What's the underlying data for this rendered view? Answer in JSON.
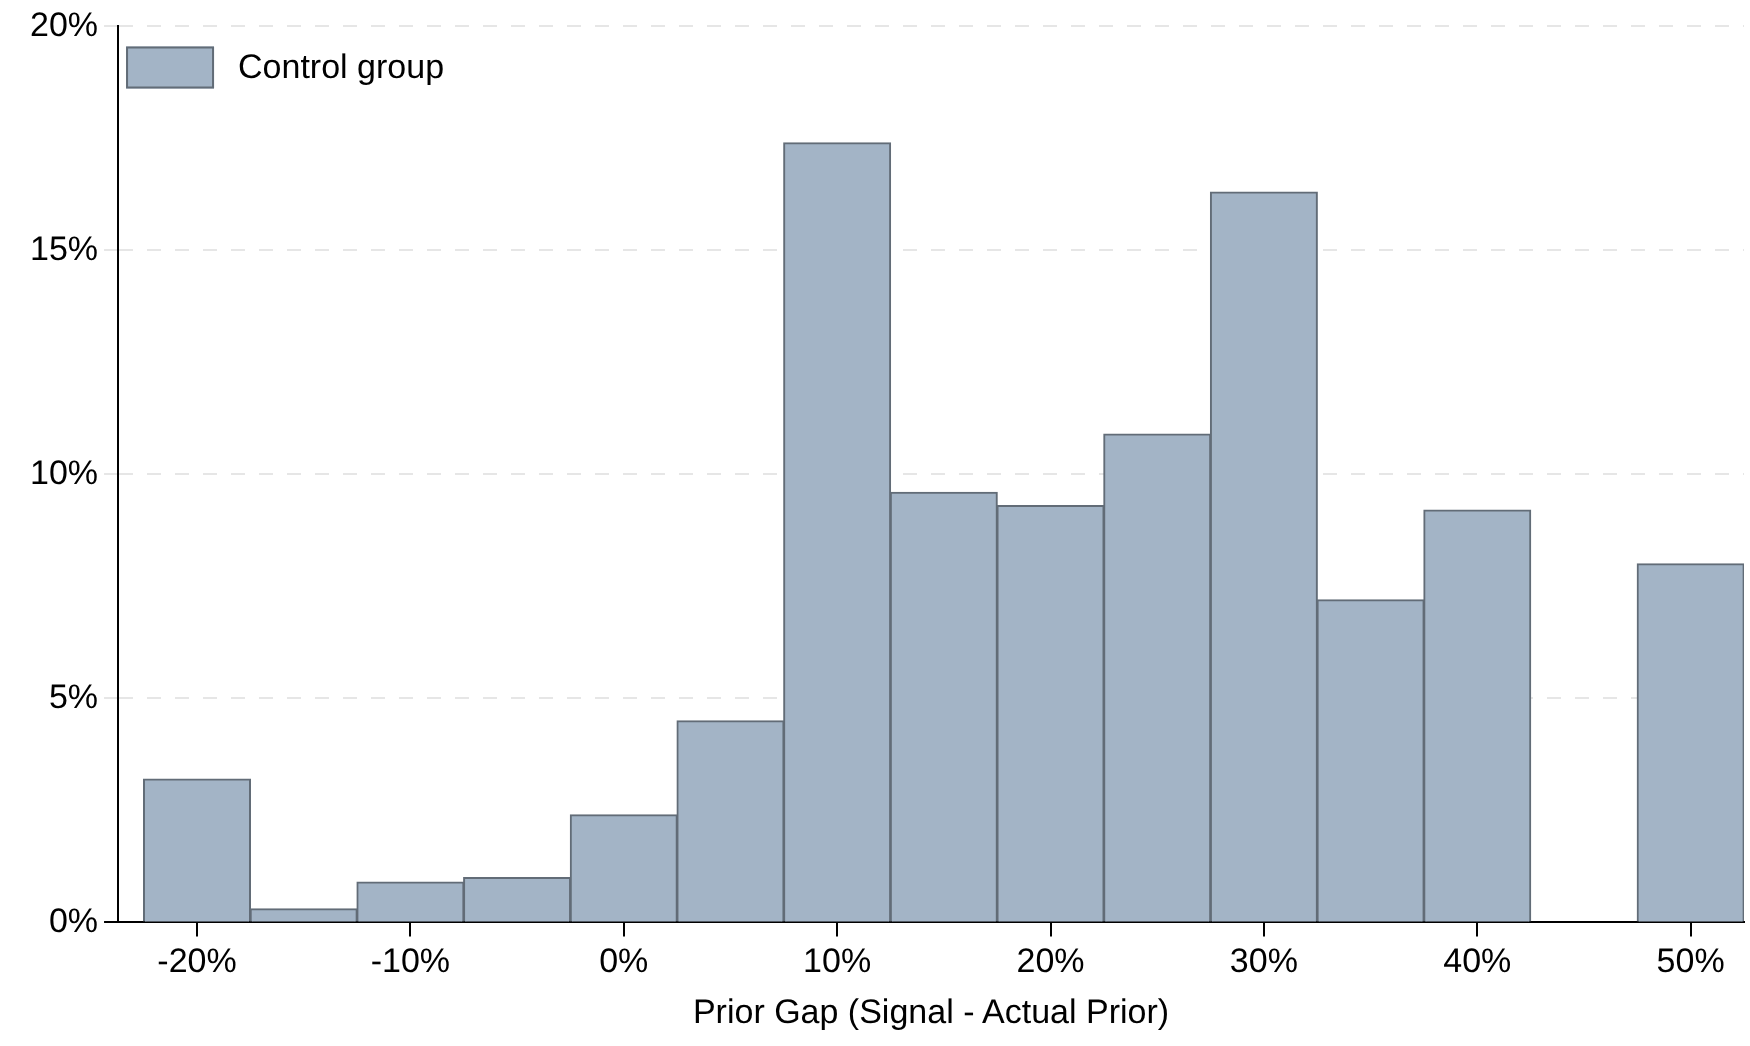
{
  "chart_data": {
    "type": "histogram",
    "xlabel": "Prior Gap (Signal - Actual Prior)",
    "bins": [
      -22.5,
      -17.5,
      -12.5,
      -7.5,
      -2.5,
      2.5,
      7.5,
      12.5,
      17.5,
      22.5,
      27.5,
      32.5,
      37.5,
      42.5,
      47.5,
      52.5
    ],
    "series": [
      {
        "name": "Control group",
        "color": "#a3b4c6",
        "values": [
          3.2,
          0.3,
          0.9,
          1.0,
          2.4,
          4.5,
          17.4,
          9.6,
          9.3,
          10.9,
          16.3,
          7.2,
          9.2,
          0,
          8.0
        ]
      }
    ],
    "xlim": [
      -23.7,
      52.5
    ],
    "xticks": [
      {
        "value": -20,
        "label": "-20%"
      },
      {
        "value": -10,
        "label": "-10%"
      },
      {
        "value": 0,
        "label": "0%"
      },
      {
        "value": 10,
        "label": "10%"
      },
      {
        "value": 20,
        "label": "20%"
      },
      {
        "value": 30,
        "label": "30%"
      },
      {
        "value": 40,
        "label": "40%"
      },
      {
        "value": 50,
        "label": "50%"
      }
    ],
    "ylim": [
      0,
      20
    ],
    "yticks": [
      {
        "value": 0,
        "label": "0%"
      },
      {
        "value": 5,
        "label": "5%"
      },
      {
        "value": 10,
        "label": "10%"
      },
      {
        "value": 15,
        "label": "15%"
      },
      {
        "value": 20,
        "label": "20%"
      }
    ],
    "grid": "y",
    "legend": "top left"
  }
}
